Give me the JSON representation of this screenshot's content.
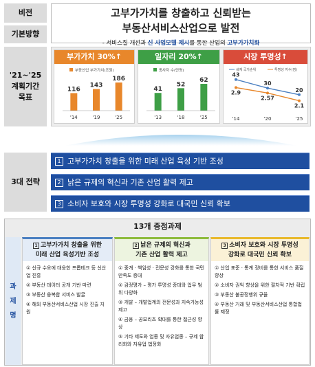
{
  "labels": {
    "vision": "비전",
    "direction": "기본방향",
    "plan_period_line1": "'21~'25",
    "plan_period_line2": "계획기간",
    "plan_period_line3": "목표",
    "strategy": "3대 전략",
    "tasks_label": [
      "과",
      "제",
      "명"
    ]
  },
  "vision": {
    "line1": "고부가가치를 창출하고 신뢰받는",
    "line2": "부동산서비스산업으로 발전"
  },
  "direction": {
    "prefix": "- 서비스질 개선과 ",
    "hl1": "신 사업모델 제시",
    "mid": "를 통한 산업의 ",
    "hl2": "고부가가치화"
  },
  "goals": [
    {
      "title": "부가가치 30%↑",
      "color": "#e8872b"
    },
    {
      "title": "일자리 20%↑",
      "color": "#3e9f46"
    },
    {
      "title": "시장 투명성↑",
      "color": "#d94c3a"
    }
  ],
  "chart_data": [
    {
      "type": "bar",
      "legend": [
        "부동산업 부가가치(조원)"
      ],
      "categories": [
        "'14",
        "'19",
        "'25"
      ],
      "values": [
        116,
        143,
        186
      ],
      "ylim": [
        0,
        200
      ],
      "color": "#e8872b"
    },
    {
      "type": "bar",
      "legend": [
        "종사자 수(만명)"
      ],
      "categories": [
        "'13",
        "'18",
        "'25"
      ],
      "values": [
        41,
        52,
        62
      ],
      "ylim": [
        0,
        70
      ],
      "color": "#3e9f46"
    },
    {
      "type": "line",
      "legend": [
        "세계 국가순위",
        "투명성 지수(점)"
      ],
      "categories": [
        "'14",
        "'20",
        "'25"
      ],
      "series": [
        {
          "name": "세계 국가순위",
          "values": [
            43,
            30,
            20
          ],
          "color": "#4a7fc1"
        },
        {
          "name": "투명성 지수(점)",
          "values": [
            2.9,
            2.57,
            2.1
          ],
          "color": "#e8872b"
        }
      ],
      "ylim_rank": [
        0,
        50
      ],
      "ylim_index": [
        1.5,
        3.5
      ]
    }
  ],
  "strategies": [
    {
      "num": "1",
      "text": "고부가가치 창출을 위한 미래 산업 육성 기반 조성"
    },
    {
      "num": "2",
      "text": "낡은 규제의 혁신과 기존 산업 활력 제고"
    },
    {
      "num": "3",
      "text": "소비자 보호와 시장 투명성 강화로 대국민 신뢰 확보"
    }
  ],
  "tasks_title": "13개 중점과제",
  "task_columns": [
    {
      "num": "1",
      "head1": "고부가가치 창출을 위한",
      "head2": "미래 산업 육성기반 조성",
      "color": "#4a7fc1",
      "items": [
        "① 신규 수요에 대응한 프롭테크 등 신산업 진흥",
        "② 부동산 데이터 공개 기반 마련",
        "③ 부동산 융복합 서비스 발굴",
        "④ 해외 부동산서비스산업 시장 진출 지원"
      ]
    },
    {
      "num": "2",
      "head1": "낡은 규제의 혁신과",
      "head2": "기존 산업 활력 제고",
      "color": "#8dbb3c",
      "items": [
        "① 중개 · 책임성 · 전문성 강화를 통한 국민 만족도 증대",
        "② 감정평가 – 평가 투명성 증대와 업무 범위 다양화",
        "③ 개발 – 개발업계의 전문성과 지속가능성 제고",
        "④ 금융 – 공모리츠 확대를 통한 접근성 향상",
        "⑤ 기타 제도와 업종 및 자유업종 – 규제 합리화와 자유업 법정화"
      ]
    },
    {
      "num": "3",
      "head1": "소비자 보호와 시장 투명성",
      "head2": "강화로 대국민 신뢰 확보",
      "color": "#e8b92b",
      "items": [
        "① 산업 표준 · 통계 정비를 통한 서비스 품질 향상",
        "② 소비자 권익 향상을 위한 절차적 기반 확립",
        "③ 부동산 불공정행위 규율",
        "④ 부동산 거래 및 부동산서비스산업 통합법률 제정"
      ]
    }
  ]
}
